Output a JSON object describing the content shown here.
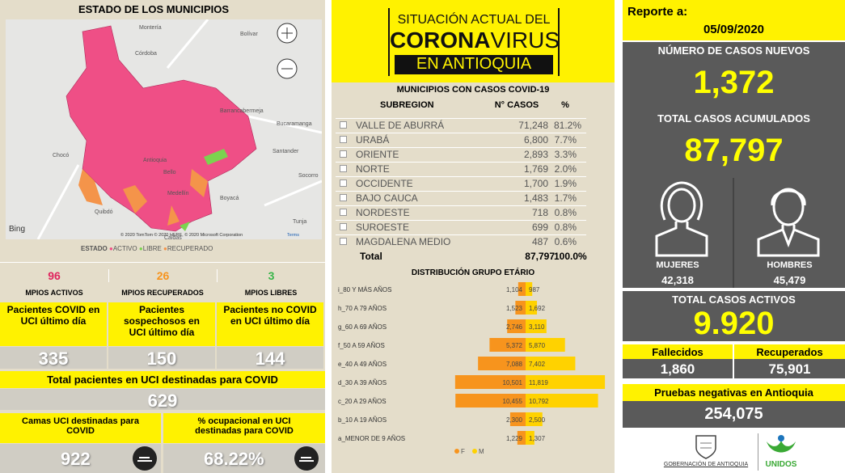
{
  "map_panel": {
    "title": "ESTADO DE LOS MUNICIPIOS",
    "places": [
      "Montería",
      "Bolívar",
      "Córdoba",
      "Barrancabermeja",
      "Bucaramanga",
      "Chocó",
      "Santander",
      "Antioquia",
      "Bello",
      "Medellín",
      "Socorro",
      "Quibdó",
      "Boyacá",
      "Tunja",
      "Caldas"
    ],
    "provider": "Bing",
    "attribution": "© 2020 TomTom © 2020 HERE, © 2020 Microsoft Corporation",
    "terms": "Terms",
    "legend": {
      "title": "ESTADO",
      "items": [
        "ACTIVO",
        "LIBRE",
        "RECUPERADO"
      ]
    }
  },
  "municipios": [
    {
      "value": "96",
      "label": "MPIOS ACTIVOS"
    },
    {
      "value": "26",
      "label": "MPIOS RECUPERADOS"
    },
    {
      "value": "3",
      "label": "MPIOS LIBRES"
    }
  ],
  "uci_patients": [
    {
      "label": "Pacientes COVID en UCI último día",
      "value": "335"
    },
    {
      "label": "Pacientes sospechosos en UCI último día",
      "value": "150"
    },
    {
      "label": "Pacientes no COVID en UCI último día",
      "value": "144"
    }
  ],
  "uci_total": {
    "label": "Total pacientes en UCI destinadas para COVID",
    "value": "629"
  },
  "uci_beds": [
    {
      "label": "Camas UCI destinadas para COVID",
      "value": "922"
    },
    {
      "label": "% ocupacional en UCI destinadas para COVID",
      "value": "68.22%"
    }
  ],
  "banner": {
    "line1": "SITUACIÓN ACTUAL DEL",
    "corona": "CORONA",
    "virus": "VIRUS",
    "line3": "EN ANTIOQUIA"
  },
  "table": {
    "title": "MUNICIPIOS CON CASOS COVID-19",
    "header": [
      "SUBREGION",
      "N° CASOS",
      "%"
    ],
    "rows": [
      [
        "VALLE DE ABURRÁ",
        "71,248",
        "81.2%"
      ],
      [
        "URABÁ",
        "6,800",
        "7.7%"
      ],
      [
        "ORIENTE",
        "2,893",
        "3.3%"
      ],
      [
        "NORTE",
        "1,769",
        "2.0%"
      ],
      [
        "OCCIDENTE",
        "1,700",
        "1.9%"
      ],
      [
        "BAJO CAUCA",
        "1,483",
        "1.7%"
      ],
      [
        "NORDESTE",
        "718",
        "0.8%"
      ],
      [
        "SUROESTE",
        "699",
        "0.8%"
      ],
      [
        "MAGDALENA MEDIO",
        "487",
        "0.6%"
      ]
    ],
    "total": [
      "Total",
      "87,797",
      "100.0%"
    ]
  },
  "age_chart": {
    "type": "bar",
    "title": "DISTRIBUCIÓN GRUPO ETÁRIO",
    "categories": [
      "i_80 Y MÁS AÑOS",
      "h_70 A 79 AÑOS",
      "g_60 A 69 AÑOS",
      "f_50 A 59 AÑOS",
      "e_40 A 49 AÑOS",
      "d_30 A 39 AÑOS",
      "c_20 A 29 AÑOS",
      "b_10 A 19 AÑOS",
      "a_MENOR DE 9 AÑOS"
    ],
    "series": [
      {
        "name": "F",
        "color": "#f7941d",
        "values": [
          1104,
          1523,
          2746,
          5372,
          7088,
          10501,
          10455,
          2300,
          1229
        ],
        "value_labels": [
          "1,104",
          "1,523",
          "2,746",
          "5,372",
          "7,088",
          "10,501",
          "10,455",
          "2,300",
          "1,229"
        ]
      },
      {
        "name": "M",
        "color": "#ffd200",
        "values": [
          987,
          1692,
          3110,
          5870,
          7402,
          11819,
          10792,
          2500,
          1307
        ],
        "value_labels": [
          "987",
          "1,692",
          "3,110",
          "5,870",
          "7,402",
          "11,819",
          "10,792",
          "2,500",
          "1,307"
        ]
      }
    ]
  },
  "report": {
    "label": "Reporte a:",
    "date": "05/09/2020",
    "new_cases": {
      "label": "NÚMERO DE CASOS NUEVOS",
      "value": "1,372"
    },
    "total_cases": {
      "label": "TOTAL CASOS ACUMULADOS",
      "value": "87,797"
    },
    "women": {
      "label": "MUJERES",
      "value": "42,318"
    },
    "men": {
      "label": "HOMBRES",
      "value": "45,479"
    },
    "active": {
      "label": "TOTAL CASOS ACTIVOS",
      "value": "9.920"
    },
    "deaths": {
      "label": "Fallecidos",
      "value": "1,860"
    },
    "recovered": {
      "label": "Recuperados",
      "value": "75,901"
    },
    "negative_tests": {
      "label": "Pruebas negativas en Antioquia",
      "value": "254,075"
    }
  },
  "logos": [
    "GOBERNACIÓN DE ANTIOQUIA",
    "UNIDOS"
  ]
}
